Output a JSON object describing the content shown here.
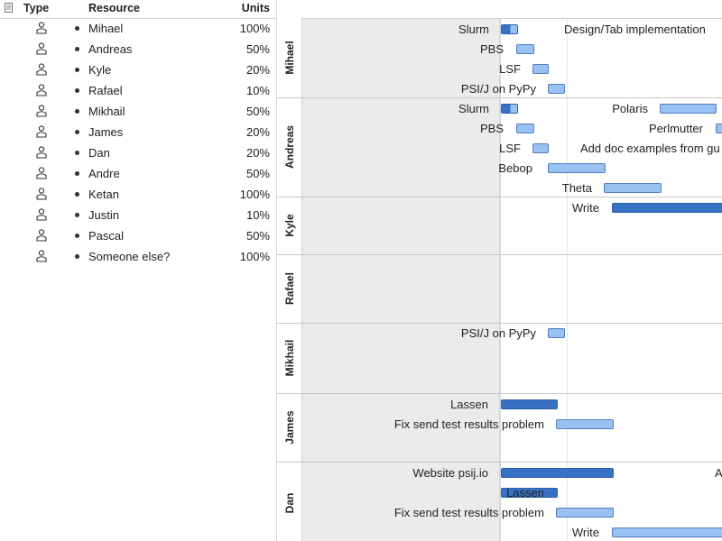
{
  "table": {
    "headers": {
      "type": "Type",
      "resource": "Resource",
      "units": "Units"
    },
    "rows": [
      {
        "name": "Mihael",
        "units": "100%"
      },
      {
        "name": "Andreas",
        "units": "50%"
      },
      {
        "name": "Kyle",
        "units": "20%"
      },
      {
        "name": "Rafael",
        "units": "10%"
      },
      {
        "name": "Mikhail",
        "units": "50%"
      },
      {
        "name": "James",
        "units": "20%"
      },
      {
        "name": "Dan",
        "units": "20%"
      },
      {
        "name": "Andre",
        "units": "50%"
      },
      {
        "name": "Ketan",
        "units": "100%"
      },
      {
        "name": "Justin",
        "units": "10%"
      },
      {
        "name": "Pascal",
        "units": "50%"
      },
      {
        "name": "Someone else?",
        "units": "100%"
      }
    ]
  },
  "gantt": {
    "groups": [
      {
        "name": "Mihael",
        "tasks": [
          {
            "label": "Slurm",
            "bar": "partial",
            "progress": 0.55
          },
          {
            "label": "PBS",
            "bar": "light"
          },
          {
            "label": "LSF",
            "bar": "light"
          },
          {
            "label": "PSI/J on PyPy",
            "bar": "light"
          },
          {
            "label": "Design/Tab implementation"
          }
        ]
      },
      {
        "name": "Andreas",
        "tasks": [
          {
            "label": "Slurm",
            "bar": "partial",
            "progress": 0.55
          },
          {
            "label": "PBS",
            "bar": "light"
          },
          {
            "label": "LSF",
            "bar": "light"
          },
          {
            "label": "Bebop",
            "bar": "light"
          },
          {
            "label": "Theta",
            "bar": "light"
          },
          {
            "label": "Polaris",
            "bar": "light"
          },
          {
            "label": "Perlmutter",
            "bar": "light"
          },
          {
            "label": "Add doc examples from gu"
          }
        ]
      },
      {
        "name": "Kyle",
        "tasks": [
          {
            "label": "Write",
            "bar": "dark"
          }
        ]
      },
      {
        "name": "Rafael",
        "tasks": []
      },
      {
        "name": "Mikhail",
        "tasks": [
          {
            "label": "PSI/J on PyPy",
            "bar": "light"
          }
        ]
      },
      {
        "name": "James",
        "tasks": [
          {
            "label": "Lassen",
            "bar": "dark"
          },
          {
            "label": "Fix send test results problem",
            "bar": "light"
          }
        ]
      },
      {
        "name": "Dan",
        "tasks": [
          {
            "label": "Website psij.io",
            "bar": "dark"
          },
          {
            "label": "Lassen",
            "bar": "dark"
          },
          {
            "label": "Fix send test results problem",
            "bar": "light"
          },
          {
            "label": "Write",
            "bar": "light"
          },
          {
            "label": "A"
          }
        ]
      }
    ]
  },
  "colors": {
    "bar_light": "#99c1f2",
    "bar_dark": "#3872c4",
    "past_shade": "#ebebeb"
  }
}
